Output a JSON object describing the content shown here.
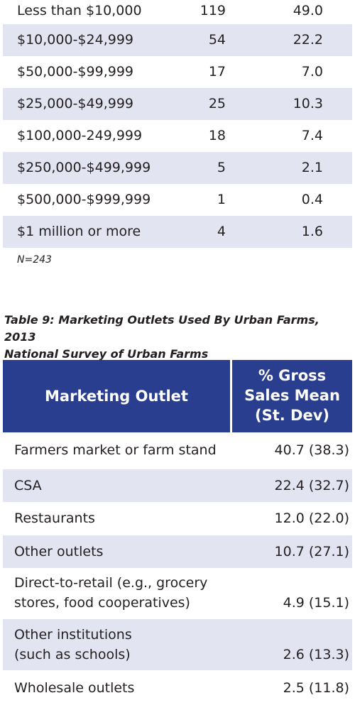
{
  "sales_table": {
    "rows": [
      {
        "label": "Less than $10,000",
        "count": "119",
        "percent": "49.0"
      },
      {
        "label": "$10,000-$24,999",
        "count": "54",
        "percent": "22.2"
      },
      {
        "label": "$50,000-$99,999",
        "count": "17",
        "percent": "7.0"
      },
      {
        "label": "$25,000-$49,999",
        "count": "25",
        "percent": "10.3"
      },
      {
        "label": "$100,000-249,999",
        "count": "18",
        "percent": "7.4"
      },
      {
        "label": "$250,000-$499,999",
        "count": "5",
        "percent": "2.1"
      },
      {
        "label": "$500,000-$999,999",
        "count": "1",
        "percent": "0.4"
      },
      {
        "label": "$1 million or more",
        "count": "4",
        "percent": "1.6"
      }
    ],
    "note": "N=243"
  },
  "table9": {
    "caption_line1": "Table 9: Marketing Outlets Used By Urban Farms, 2013",
    "caption_line2": "National Survey of Urban Farms",
    "header": {
      "col1": "Marketing Outlet",
      "col2_line1": "% Gross",
      "col2_line2": "Sales Mean",
      "col2_line3": "(St. Dev)"
    },
    "rows": [
      {
        "label_line1": "Farmers market or farm stand",
        "label_line2": "",
        "value": "40.7 (38.3)"
      },
      {
        "label_line1": "CSA",
        "label_line2": "",
        "value": "22.4 (32.7)"
      },
      {
        "label_line1": "Restaurants",
        "label_line2": "",
        "value": "12.0 (22.0)"
      },
      {
        "label_line1": "Other outlets",
        "label_line2": "",
        "value": "10.7 (27.1)"
      },
      {
        "label_line1": "Direct-to-retail (e.g., grocery",
        "label_line2": "stores, food cooperatives)",
        "value": "4.9 (15.1)"
      },
      {
        "label_line1": "Other institutions",
        "label_line2": "(such as schools)",
        "value": "2.6 (13.3)"
      },
      {
        "label_line1": "Wholesale outlets",
        "label_line2": "",
        "value": "2.5 (11.8)"
      }
    ]
  },
  "colors": {
    "header_bg": "#2a3e8f",
    "row_shade": "#e3e4f2",
    "text": "#231f20"
  }
}
